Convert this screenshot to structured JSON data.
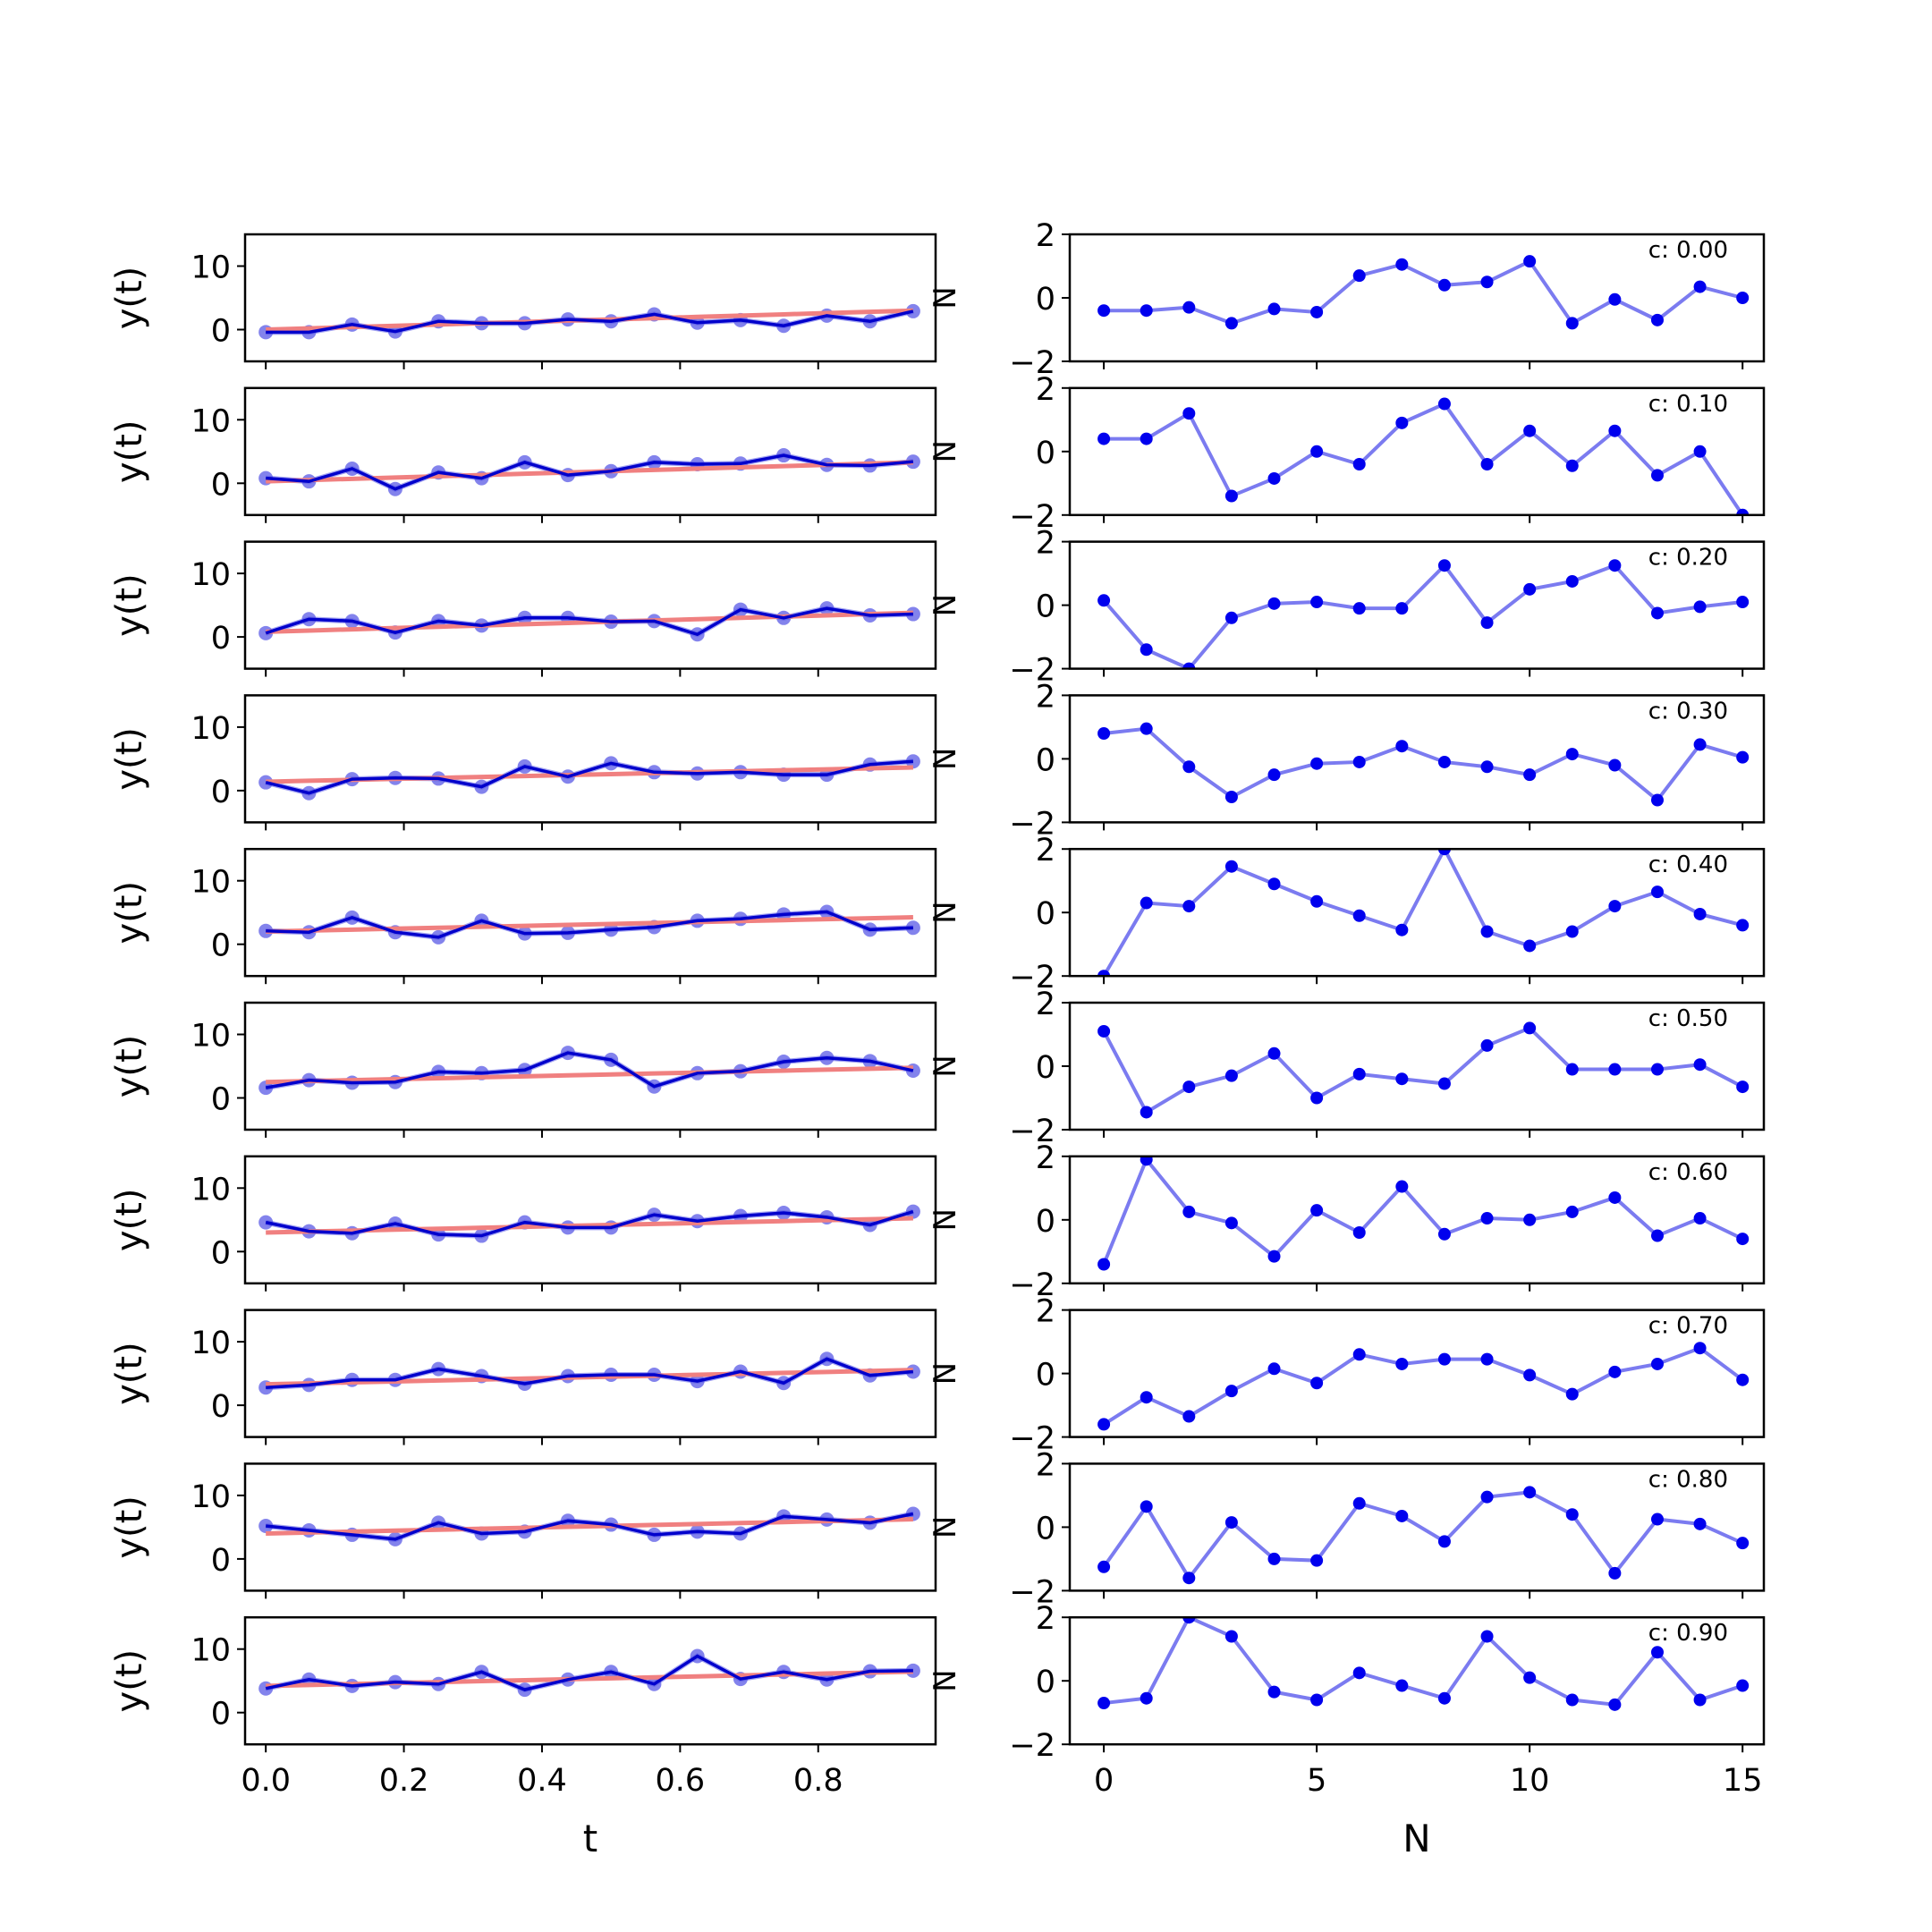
{
  "figure": {
    "left_xlabel": "t",
    "right_xlabel": "N",
    "left_ylabel": "y(t)",
    "right_ylabel": "N"
  },
  "colors": {
    "trend": "#f08080",
    "series_line": "#0000cc",
    "series_marker": "#5a5ae6",
    "residual_line": "#7b7bf0",
    "residual_marker": "#0000ee"
  },
  "chart_data": [
    {
      "type": "line",
      "panel": "left",
      "xlabel": "t",
      "ylabel": "y(t)",
      "xlim": [
        -0.03,
        0.97
      ],
      "ylim": [
        -5,
        15
      ],
      "xticks": [
        0.0,
        0.2,
        0.4,
        0.6,
        0.8
      ],
      "xtick_labels": [
        "0.0",
        "0.2",
        "0.4",
        "0.6",
        "0.8"
      ],
      "yticks": [
        0,
        10
      ],
      "ytick_labels": [
        "0",
        "10"
      ],
      "x": [
        0,
        0.0625,
        0.125,
        0.1875,
        0.25,
        0.3125,
        0.375,
        0.4375,
        0.5,
        0.5625,
        0.625,
        0.6875,
        0.75,
        0.8125,
        0.875,
        0.9375
      ],
      "series": [
        {
          "values": [
            -0.4,
            -0.4,
            0.8,
            -0.3,
            1.3,
            1.0,
            1.0,
            1.6,
            1.3,
            2.4,
            1.1,
            1.5,
            0.6,
            2.2,
            1.3,
            2.9
          ]
        },
        {
          "values": [
            0.0,
            0.2,
            0.4,
            0.6,
            0.8,
            1.0,
            1.2,
            1.4,
            1.6,
            1.8,
            2.0,
            2.2,
            2.4,
            2.6,
            2.8,
            3.0
          ]
        }
      ]
    },
    {
      "type": "line",
      "panel": "left",
      "ylim": [
        -5,
        15
      ],
      "yticks": [
        0,
        10
      ],
      "ytick_labels": [
        "0",
        "10"
      ],
      "x": [
        0,
        0.0625,
        0.125,
        0.1875,
        0.25,
        0.3125,
        0.375,
        0.4375,
        0.5,
        0.5625,
        0.625,
        0.6875,
        0.75,
        0.8125,
        0.875,
        0.9375
      ],
      "series": [
        {
          "values": [
            0.8,
            0.3,
            2.3,
            -0.9,
            1.7,
            0.8,
            3.3,
            1.3,
            1.9,
            3.3,
            3.0,
            3.1,
            4.4,
            2.9,
            2.8,
            3.4
          ]
        },
        {
          "values": [
            0.3,
            0.5,
            0.7,
            0.9,
            1.1,
            1.3,
            1.5,
            1.7,
            1.9,
            2.1,
            2.3,
            2.5,
            2.7,
            2.9,
            3.1,
            3.3
          ]
        }
      ]
    },
    {
      "type": "line",
      "panel": "left",
      "ylim": [
        -5,
        15
      ],
      "yticks": [
        0,
        10
      ],
      "ytick_labels": [
        "0",
        "10"
      ],
      "x": [
        0,
        0.0625,
        0.125,
        0.1875,
        0.25,
        0.3125,
        0.375,
        0.4375,
        0.5,
        0.5625,
        0.625,
        0.6875,
        0.75,
        0.8125,
        0.875,
        0.9375
      ],
      "series": [
        {
          "values": [
            0.6,
            2.8,
            2.5,
            0.7,
            2.5,
            1.8,
            3.0,
            3.0,
            2.4,
            2.5,
            0.4,
            4.3,
            3.0,
            4.5,
            3.4,
            3.6
          ]
        },
        {
          "values": [
            0.8,
            1.0,
            1.2,
            1.4,
            1.6,
            1.8,
            2.0,
            2.2,
            2.4,
            2.6,
            2.8,
            3.0,
            3.2,
            3.4,
            3.6,
            3.8
          ]
        }
      ]
    },
    {
      "type": "line",
      "panel": "left",
      "ylim": [
        -5,
        15
      ],
      "yticks": [
        0,
        10
      ],
      "ytick_labels": [
        "0",
        "10"
      ],
      "x": [
        0,
        0.0625,
        0.125,
        0.1875,
        0.25,
        0.3125,
        0.375,
        0.4375,
        0.5,
        0.5625,
        0.625,
        0.6875,
        0.75,
        0.8125,
        0.875,
        0.9375
      ],
      "series": [
        {
          "values": [
            1.3,
            -0.4,
            1.8,
            2.0,
            1.9,
            0.6,
            3.8,
            2.2,
            4.3,
            2.9,
            2.7,
            2.9,
            2.5,
            2.5,
            4.1,
            4.6
          ]
        },
        {
          "values": [
            1.4,
            1.55,
            1.7,
            1.85,
            2.0,
            2.15,
            2.3,
            2.45,
            2.6,
            2.75,
            2.9,
            3.05,
            3.2,
            3.35,
            3.5,
            3.65
          ]
        }
      ]
    },
    {
      "type": "line",
      "panel": "left",
      "ylim": [
        -5,
        15
      ],
      "yticks": [
        0,
        10
      ],
      "ytick_labels": [
        "0",
        "10"
      ],
      "x": [
        0,
        0.0625,
        0.125,
        0.1875,
        0.25,
        0.3125,
        0.375,
        0.4375,
        0.5,
        0.5625,
        0.625,
        0.6875,
        0.75,
        0.8125,
        0.875,
        0.9375
      ],
      "series": [
        {
          "values": [
            2.1,
            1.9,
            4.2,
            1.9,
            1.1,
            3.7,
            1.7,
            1.8,
            2.3,
            2.7,
            3.7,
            4.0,
            4.7,
            5.1,
            2.3,
            2.6
          ]
        },
        {
          "values": [
            2.0,
            2.15,
            2.3,
            2.45,
            2.6,
            2.75,
            2.9,
            3.05,
            3.2,
            3.35,
            3.5,
            3.65,
            3.8,
            3.95,
            4.1,
            4.25
          ]
        }
      ]
    },
    {
      "type": "line",
      "panel": "left",
      "ylim": [
        -5,
        15
      ],
      "yticks": [
        0,
        10
      ],
      "ytick_labels": [
        "0",
        "10"
      ],
      "x": [
        0,
        0.0625,
        0.125,
        0.1875,
        0.25,
        0.3125,
        0.375,
        0.4375,
        0.5,
        0.5625,
        0.625,
        0.6875,
        0.75,
        0.8125,
        0.875,
        0.9375
      ],
      "series": [
        {
          "values": [
            1.6,
            2.8,
            2.4,
            2.5,
            4.1,
            3.9,
            4.4,
            7.1,
            6.0,
            1.8,
            3.9,
            4.2,
            5.7,
            6.3,
            5.8,
            4.3
          ]
        },
        {
          "values": [
            2.5,
            2.65,
            2.8,
            2.95,
            3.1,
            3.25,
            3.4,
            3.55,
            3.7,
            3.85,
            4.0,
            4.15,
            4.3,
            4.45,
            4.6,
            4.75
          ]
        }
      ]
    },
    {
      "type": "line",
      "panel": "left",
      "ylim": [
        -5,
        15
      ],
      "yticks": [
        0,
        10
      ],
      "ytick_labels": [
        "0",
        "10"
      ],
      "x": [
        0,
        0.0625,
        0.125,
        0.1875,
        0.25,
        0.3125,
        0.375,
        0.4375,
        0.5,
        0.5625,
        0.625,
        0.6875,
        0.75,
        0.8125,
        0.875,
        0.9375
      ],
      "series": [
        {
          "values": [
            4.6,
            3.2,
            2.9,
            4.4,
            2.7,
            2.5,
            4.6,
            3.8,
            3.8,
            5.8,
            4.8,
            5.6,
            6.1,
            5.4,
            4.2,
            6.3
          ]
        },
        {
          "values": [
            3.0,
            3.15,
            3.3,
            3.45,
            3.6,
            3.75,
            3.9,
            4.05,
            4.2,
            4.35,
            4.5,
            4.65,
            4.8,
            4.95,
            5.1,
            5.25
          ]
        }
      ]
    },
    {
      "type": "line",
      "panel": "left",
      "ylim": [
        -5,
        15
      ],
      "yticks": [
        0,
        10
      ],
      "ytick_labels": [
        "0",
        "10"
      ],
      "x": [
        0,
        0.0625,
        0.125,
        0.1875,
        0.25,
        0.3125,
        0.375,
        0.4375,
        0.5,
        0.5625,
        0.625,
        0.6875,
        0.75,
        0.8125,
        0.875,
        0.9375
      ],
      "series": [
        {
          "values": [
            2.8,
            3.2,
            4.0,
            4.0,
            5.7,
            4.6,
            3.4,
            4.6,
            4.8,
            4.8,
            3.8,
            5.3,
            3.5,
            7.3,
            4.7,
            5.3
          ]
        },
        {
          "values": [
            3.3,
            3.45,
            3.6,
            3.75,
            3.9,
            4.05,
            4.2,
            4.35,
            4.5,
            4.65,
            4.8,
            4.95,
            5.1,
            5.25,
            5.4,
            5.55
          ]
        }
      ]
    },
    {
      "type": "line",
      "panel": "left",
      "ylim": [
        -5,
        15
      ],
      "yticks": [
        0,
        10
      ],
      "ytick_labels": [
        "0",
        "10"
      ],
      "x": [
        0,
        0.0625,
        0.125,
        0.1875,
        0.25,
        0.3125,
        0.375,
        0.4375,
        0.5,
        0.5625,
        0.625,
        0.6875,
        0.75,
        0.8125,
        0.875,
        0.9375
      ],
      "series": [
        {
          "values": [
            5.2,
            4.5,
            3.8,
            3.1,
            5.7,
            4.0,
            4.3,
            6.0,
            5.4,
            3.8,
            4.3,
            4.0,
            6.7,
            6.2,
            5.7,
            7.1
          ]
        },
        {
          "values": [
            4.0,
            4.15,
            4.3,
            4.45,
            4.6,
            4.75,
            4.9,
            5.05,
            5.2,
            5.35,
            5.5,
            5.65,
            5.8,
            5.95,
            6.1,
            6.25
          ]
        }
      ]
    },
    {
      "type": "line",
      "panel": "left",
      "ylim": [
        -5,
        15
      ],
      "yticks": [
        0,
        10
      ],
      "ytick_labels": [
        "0",
        "10"
      ],
      "x": [
        0,
        0.0625,
        0.125,
        0.1875,
        0.25,
        0.3125,
        0.375,
        0.4375,
        0.5,
        0.5625,
        0.625,
        0.6875,
        0.75,
        0.8125,
        0.875,
        0.9375
      ],
      "series": [
        {
          "values": [
            3.8,
            5.2,
            4.2,
            4.8,
            4.5,
            6.4,
            3.6,
            5.2,
            6.4,
            4.5,
            8.9,
            5.3,
            6.4,
            5.2,
            6.5,
            6.6
          ]
        },
        {
          "values": [
            4.2,
            4.35,
            4.5,
            4.65,
            4.8,
            4.95,
            5.1,
            5.25,
            5.4,
            5.55,
            5.7,
            5.85,
            6.0,
            6.15,
            6.3,
            6.45
          ]
        }
      ]
    },
    {
      "type": "line",
      "panel": "right",
      "xlabel": "N",
      "xlim": [
        -0.8,
        15.5
      ],
      "ylim": [
        -2,
        2
      ],
      "xticks": [
        0,
        5,
        10,
        15
      ],
      "xtick_labels": [
        "0",
        "5",
        "10",
        "15"
      ],
      "yticks": [
        -2,
        0,
        2
      ],
      "ytick_labels": [
        "−2",
        "0",
        "2"
      ],
      "annotation": "c: 0.00",
      "x": [
        0,
        1,
        2,
        3,
        4,
        5,
        6,
        7,
        8,
        9,
        10,
        11,
        12,
        13,
        14,
        15
      ],
      "values": [
        -0.4,
        -0.4,
        -0.3,
        -0.8,
        -0.35,
        -0.45,
        0.7,
        1.05,
        0.4,
        0.5,
        1.15,
        -0.8,
        -0.05,
        -0.7,
        0.35,
        0.0
      ]
    },
    {
      "type": "line",
      "panel": "right",
      "ylim": [
        -2,
        2
      ],
      "yticks": [
        -2,
        0,
        2
      ],
      "ytick_labels": [
        "−2",
        "0",
        "2"
      ],
      "annotation": "c: 0.10",
      "x": [
        0,
        1,
        2,
        3,
        4,
        5,
        6,
        7,
        8,
        9,
        10,
        11,
        12,
        13,
        14,
        15
      ],
      "values": [
        0.4,
        0.4,
        1.2,
        -1.4,
        -0.85,
        0.0,
        -0.4,
        0.9,
        1.5,
        -0.4,
        0.65,
        -0.45,
        0.65,
        -0.75,
        0.0,
        -2.0
      ]
    },
    {
      "type": "line",
      "panel": "right",
      "ylim": [
        -2,
        2
      ],
      "yticks": [
        -2,
        0,
        2
      ],
      "ytick_labels": [
        "−2",
        "0",
        "2"
      ],
      "annotation": "c: 0.20",
      "x": [
        0,
        1,
        2,
        3,
        4,
        5,
        6,
        7,
        8,
        9,
        10,
        11,
        12,
        13,
        14,
        15
      ],
      "values": [
        0.15,
        -1.4,
        -2.0,
        -0.4,
        0.05,
        0.1,
        -0.1,
        -0.1,
        1.25,
        -0.55,
        0.5,
        0.75,
        1.25,
        -0.25,
        -0.05,
        0.1
      ]
    },
    {
      "type": "line",
      "panel": "right",
      "ylim": [
        -2,
        2
      ],
      "yticks": [
        -2,
        0,
        2
      ],
      "ytick_labels": [
        "−2",
        "0",
        "2"
      ],
      "annotation": "c: 0.30",
      "x": [
        0,
        1,
        2,
        3,
        4,
        5,
        6,
        7,
        8,
        9,
        10,
        11,
        12,
        13,
        14,
        15
      ],
      "values": [
        0.8,
        0.95,
        -0.25,
        -1.2,
        -0.5,
        -0.15,
        -0.1,
        0.4,
        -0.1,
        -0.25,
        -0.5,
        0.15,
        -0.2,
        -1.3,
        0.45,
        0.05
      ]
    },
    {
      "type": "line",
      "panel": "right",
      "ylim": [
        -2,
        2
      ],
      "yticks": [
        -2,
        0,
        2
      ],
      "ytick_labels": [
        "−2",
        "0",
        "2"
      ],
      "annotation": "c: 0.40",
      "x": [
        0,
        1,
        2,
        3,
        4,
        5,
        6,
        7,
        8,
        9,
        10,
        11,
        12,
        13,
        14,
        15
      ],
      "values": [
        -2.0,
        0.3,
        0.2,
        1.45,
        0.9,
        0.35,
        -0.1,
        -0.55,
        2.0,
        -0.6,
        -1.05,
        -0.6,
        0.2,
        0.65,
        -0.05,
        -0.4
      ]
    },
    {
      "type": "line",
      "panel": "right",
      "ylim": [
        -2,
        2
      ],
      "yticks": [
        -2,
        0,
        2
      ],
      "ytick_labels": [
        "−2",
        "0",
        "2"
      ],
      "annotation": "c: 0.50",
      "x": [
        0,
        1,
        2,
        3,
        4,
        5,
        6,
        7,
        8,
        9,
        10,
        11,
        12,
        13,
        14,
        15
      ],
      "values": [
        1.1,
        -1.45,
        -0.65,
        -0.3,
        0.4,
        -1.0,
        -0.25,
        -0.4,
        -0.55,
        0.65,
        1.2,
        -0.1,
        -0.1,
        -0.1,
        0.05,
        -0.65
      ]
    },
    {
      "type": "line",
      "panel": "right",
      "ylim": [
        -2,
        2
      ],
      "yticks": [
        -2,
        0,
        2
      ],
      "ytick_labels": [
        "−2",
        "0",
        "2"
      ],
      "annotation": "c: 0.60",
      "x": [
        0,
        1,
        2,
        3,
        4,
        5,
        6,
        7,
        8,
        9,
        10,
        11,
        12,
        13,
        14,
        15
      ],
      "values": [
        -1.4,
        1.9,
        0.25,
        -0.1,
        -1.15,
        0.3,
        -0.4,
        1.05,
        -0.45,
        0.05,
        0.0,
        0.25,
        0.7,
        -0.5,
        0.05,
        -0.6
      ]
    },
    {
      "type": "line",
      "panel": "right",
      "ylim": [
        -2,
        2
      ],
      "yticks": [
        -2,
        0,
        2
      ],
      "ytick_labels": [
        "−2",
        "0",
        "2"
      ],
      "annotation": "c: 0.70",
      "x": [
        0,
        1,
        2,
        3,
        4,
        5,
        6,
        7,
        8,
        9,
        10,
        11,
        12,
        13,
        14,
        15
      ],
      "values": [
        -1.6,
        -0.75,
        -1.35,
        -0.55,
        0.15,
        -0.3,
        0.6,
        0.3,
        0.45,
        0.45,
        -0.05,
        -0.65,
        0.05,
        0.3,
        0.8,
        -0.2
      ]
    },
    {
      "type": "line",
      "panel": "right",
      "ylim": [
        -2,
        2
      ],
      "yticks": [
        -2,
        0,
        2
      ],
      "ytick_labels": [
        "−2",
        "0",
        "2"
      ],
      "annotation": "c: 0.80",
      "x": [
        0,
        1,
        2,
        3,
        4,
        5,
        6,
        7,
        8,
        9,
        10,
        11,
        12,
        13,
        14,
        15
      ],
      "values": [
        -1.25,
        0.65,
        -1.6,
        0.15,
        -1.0,
        -1.05,
        0.75,
        0.35,
        -0.45,
        0.95,
        1.1,
        0.4,
        -1.45,
        0.25,
        0.1,
        -0.5
      ]
    },
    {
      "type": "line",
      "panel": "right",
      "ylim": [
        -2,
        2
      ],
      "yticks": [
        -2,
        0,
        2
      ],
      "ytick_labels": [
        "−2",
        "0",
        "2"
      ],
      "annotation": "c: 0.90",
      "x": [
        0,
        1,
        2,
        3,
        4,
        5,
        6,
        7,
        8,
        9,
        10,
        11,
        12,
        13,
        14,
        15
      ],
      "values": [
        -0.7,
        -0.55,
        2.0,
        1.4,
        -0.35,
        -0.6,
        0.25,
        -0.15,
        -0.55,
        1.4,
        0.1,
        -0.6,
        -0.75,
        0.9,
        -0.6,
        -0.15
      ]
    }
  ]
}
